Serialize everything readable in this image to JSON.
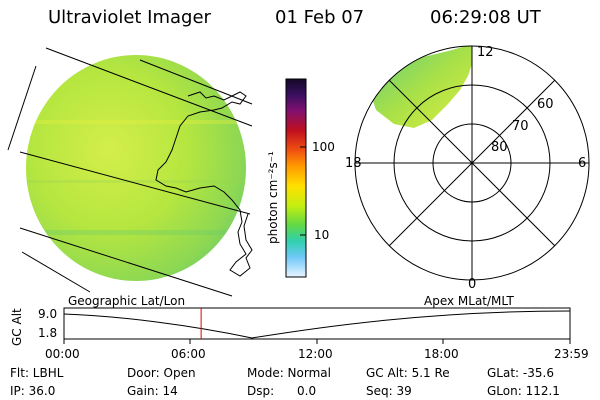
{
  "header": {
    "title": "Ultraviolet Imager",
    "date": "01 Feb 07",
    "time": "06:29:08 UT"
  },
  "colorbar": {
    "unit_label": "photon cm⁻²s⁻¹",
    "ticks": [
      "100",
      "10"
    ],
    "colors_top_to_bottom": [
      "#1a0a3a",
      "#2a0f5a",
      "#6a0f6a",
      "#a00020",
      "#e01010",
      "#ff6a00",
      "#ffa000",
      "#ffe000",
      "#c0f000",
      "#60e060",
      "#30d0b0",
      "#60c0ff",
      "#c0e8ff",
      "#e8f4ff"
    ]
  },
  "geo_panel": {
    "label": "Geographic Lat/Lon"
  },
  "polar_panel": {
    "label": "Apex MLat/MLT",
    "mlt_labels": {
      "top": "12",
      "right": "6",
      "bottom": "0",
      "left": "18"
    },
    "lat_labels": [
      "80",
      "70",
      "60"
    ]
  },
  "timeline": {
    "ylabel": "GC Alt",
    "y_ticks": [
      "9.0",
      "1.8"
    ],
    "x_ticks": [
      "00:00",
      "06:00",
      "12:00",
      "18:00",
      "23:59"
    ],
    "current_time_fraction": 0.271
  },
  "info": {
    "rows": [
      [
        "Flt: LBHL",
        "Door: Open",
        "Mode: Normal",
        "GC Alt: 5.1 Re",
        "GLat: -35.6"
      ],
      [
        "IP: 36.0",
        "Gain: 14",
        "Dsp:      0.0",
        "Seq: 39",
        "GLon: 112.1"
      ]
    ]
  }
}
